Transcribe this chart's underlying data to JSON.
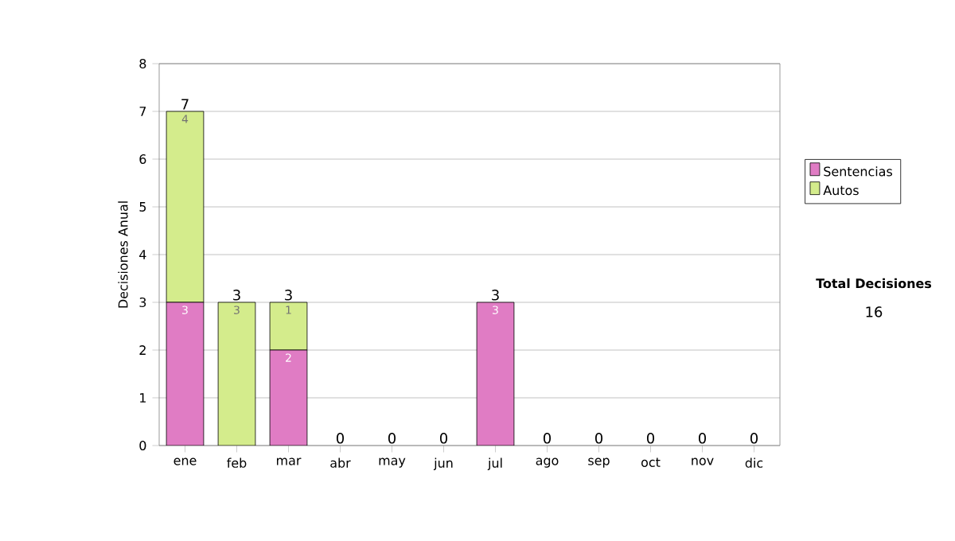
{
  "chart_data": {
    "type": "bar",
    "stacked": true,
    "ylabel": "Decisiones Anual",
    "categories": [
      "ene",
      "feb",
      "mar",
      "abr",
      "may",
      "jun",
      "jul",
      "ago",
      "sep",
      "oct",
      "nov",
      "dic"
    ],
    "series": [
      {
        "name": "Sentencias",
        "color": "#e07cc4",
        "values": [
          3,
          0,
          2,
          0,
          0,
          0,
          3,
          0,
          0,
          0,
          0,
          0
        ],
        "value_labels": [
          "3",
          null,
          "2",
          null,
          null,
          null,
          "3",
          null,
          null,
          null,
          null,
          null
        ]
      },
      {
        "name": "Autos",
        "color": "#d4ec8c",
        "values": [
          4,
          3,
          1,
          0,
          0,
          0,
          0,
          0,
          0,
          0,
          0,
          0
        ],
        "value_labels": [
          "4",
          "3",
          "1",
          null,
          null,
          null,
          null,
          null,
          null,
          null,
          null,
          null
        ]
      }
    ],
    "totals": [
      "7",
      "3",
      "3",
      "0",
      "0",
      "0",
      "3",
      "0",
      "0",
      "0",
      "0",
      "0"
    ],
    "ylim": [
      0,
      8
    ],
    "yticks": [
      0,
      1,
      2,
      3,
      4,
      5,
      6,
      7,
      8
    ],
    "grid": "y",
    "legend": "right",
    "annotations": [
      "Total Decisiones",
      "16"
    ]
  }
}
